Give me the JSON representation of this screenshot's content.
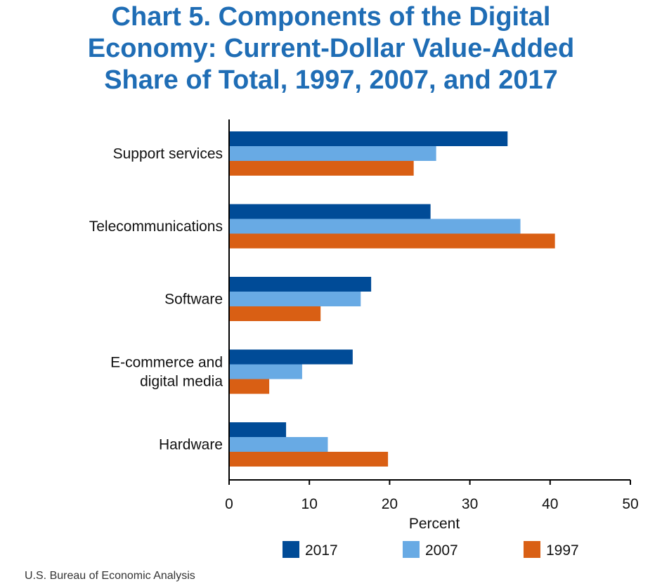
{
  "chart_data": {
    "type": "bar",
    "orientation": "horizontal",
    "title": "Chart 5. Components of the Digital Economy: Current-Dollar Value-Added Share of Total, 1997, 2007, and 2017",
    "title_lines": [
      "Chart 5. Components of the Digital",
      "Economy: Current-Dollar Value-Added",
      "Share of Total, 1997, 2007, and 2017"
    ],
    "categories": [
      "Support services",
      "Telecommunications",
      "Software",
      "E-commerce and digital media",
      "Hardware"
    ],
    "category_lines": [
      [
        "Support services"
      ],
      [
        "Telecommunications"
      ],
      [
        "Software"
      ],
      [
        "E-commerce and",
        "digital media"
      ],
      [
        "Hardware"
      ]
    ],
    "series": [
      {
        "name": "2017",
        "color": "#004b97",
        "values": [
          34.7,
          25.1,
          17.7,
          15.4,
          7.1
        ]
      },
      {
        "name": "2007",
        "color": "#68aae4",
        "values": [
          25.8,
          36.3,
          16.4,
          9.1,
          12.3
        ]
      },
      {
        "name": "1997",
        "color": "#d95f14",
        "values": [
          23.0,
          40.6,
          11.4,
          5.0,
          19.8
        ]
      }
    ],
    "xlabel": "Percent",
    "ylabel": "",
    "xlim": [
      0,
      50
    ],
    "xticks": [
      "0",
      "10",
      "20",
      "30",
      "40",
      "50"
    ],
    "grid": false,
    "legend_position": "bottom"
  },
  "source": "U.S. Bureau of Economic Analysis"
}
